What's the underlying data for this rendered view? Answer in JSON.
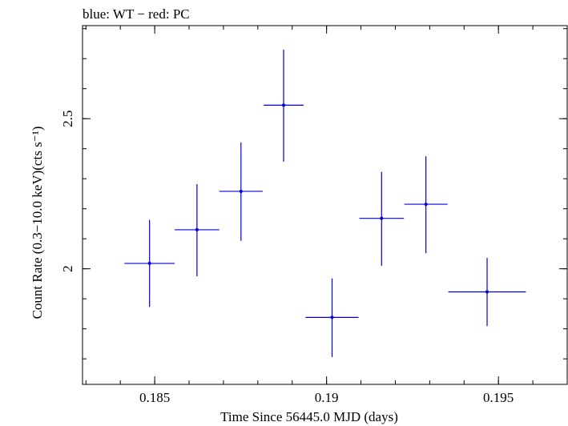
{
  "chart_data": {
    "type": "scatter",
    "title": "blue: WT − red: PC",
    "xlabel": "Time Since 56445.0 MJD (days)",
    "ylabel": "Count Rate (0.3−10.0 keV)(cts s⁻¹)",
    "xlim": [
      0.1829,
      0.197
    ],
    "ylim": [
      1.615,
      2.81
    ],
    "x_ticks": [
      {
        "value": 0.185,
        "label": "0.185"
      },
      {
        "value": 0.19,
        "label": "0.19"
      },
      {
        "value": 0.195,
        "label": "0.195"
      }
    ],
    "y_ticks": [
      {
        "value": 2.0,
        "label": "2"
      },
      {
        "value": 2.5,
        "label": "2.5"
      }
    ],
    "x_minor_step": 0.001,
    "y_minor_step": 0.1,
    "series": [
      {
        "color": "#0000dd",
        "points": [
          {
            "x": 0.18485,
            "xerr": 0.00073,
            "y": 2.018,
            "yerr_low": 0.145,
            "yerr_high": 0.145
          },
          {
            "x": 0.18623,
            "xerr": 0.00065,
            "y": 2.13,
            "yerr_low": 0.155,
            "yerr_high": 0.152
          },
          {
            "x": 0.18751,
            "xerr": 0.00063,
            "y": 2.258,
            "yerr_low": 0.165,
            "yerr_high": 0.163
          },
          {
            "x": 0.18875,
            "xerr": 0.00058,
            "y": 2.545,
            "yerr_low": 0.188,
            "yerr_high": 0.185
          },
          {
            "x": 0.19016,
            "xerr": 0.00077,
            "y": 1.838,
            "yerr_low": 0.132,
            "yerr_high": 0.13
          },
          {
            "x": 0.1916,
            "xerr": 0.00065,
            "y": 2.168,
            "yerr_low": 0.158,
            "yerr_high": 0.155
          },
          {
            "x": 0.19289,
            "xerr": 0.00063,
            "y": 2.215,
            "yerr_low": 0.163,
            "yerr_high": 0.16
          },
          {
            "x": 0.19467,
            "xerr": 0.00113,
            "y": 1.923,
            "yerr_low": 0.114,
            "yerr_high": 0.113
          }
        ]
      }
    ]
  }
}
